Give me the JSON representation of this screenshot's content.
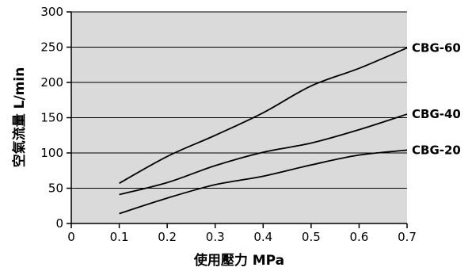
{
  "chart_data": {
    "type": "line",
    "xlabel": "使用壓力 MPa",
    "ylabel": "空氣流量 L/min",
    "xlim": [
      0,
      0.7
    ],
    "ylim": [
      0,
      300
    ],
    "x_ticks": [
      "0",
      "0.1",
      "0.2",
      "0.3",
      "0.4",
      "0.5",
      "0.6",
      "0.7"
    ],
    "y_ticks": [
      "0",
      "50",
      "100",
      "150",
      "200",
      "250",
      "300"
    ],
    "grid": "horizontal",
    "colors": {
      "plot_background": "#dadada",
      "line": "#000000",
      "grid": "#000000"
    },
    "series": [
      {
        "name": "CBG-60",
        "x": [
          0.1,
          0.2,
          0.3,
          0.4,
          0.5,
          0.6,
          0.7
        ],
        "y": [
          57,
          95,
          125,
          157,
          195,
          220,
          249
        ]
      },
      {
        "name": "CBG-40",
        "x": [
          0.1,
          0.2,
          0.3,
          0.4,
          0.5,
          0.6,
          0.7
        ],
        "y": [
          41,
          58,
          82,
          101,
          114,
          133,
          155
        ]
      },
      {
        "name": "CBG-20",
        "x": [
          0.1,
          0.2,
          0.3,
          0.4,
          0.5,
          0.6,
          0.7
        ],
        "y": [
          14,
          36,
          55,
          67,
          83,
          97,
          104
        ]
      }
    ]
  }
}
